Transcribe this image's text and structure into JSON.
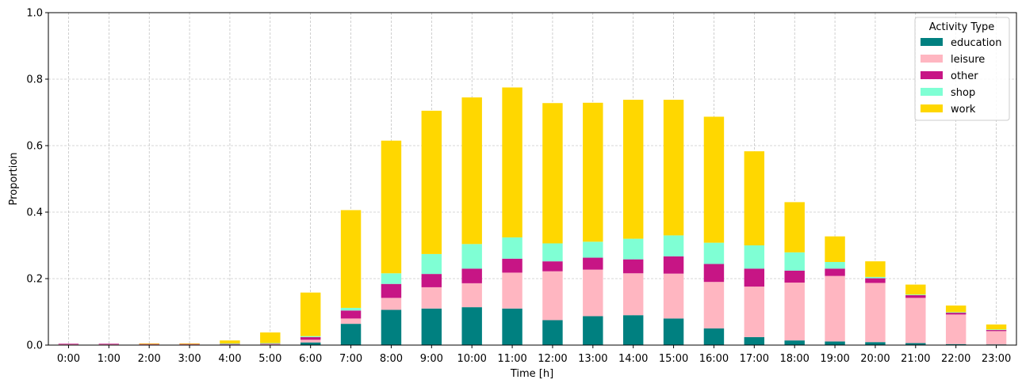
{
  "chart_data": {
    "type": "bar",
    "stacked": true,
    "title": "",
    "xlabel": "Time [h]",
    "ylabel": "Proportion",
    "ylim": [
      0,
      1.0
    ],
    "yticks": [
      "0.0",
      "0.2",
      "0.4",
      "0.6",
      "0.8",
      "1.0"
    ],
    "grid": true,
    "legend": {
      "title": "Activity Type",
      "placement": "top-right"
    },
    "categories": [
      "0:00",
      "1:00",
      "2:00",
      "3:00",
      "4:00",
      "5:00",
      "6:00",
      "7:00",
      "8:00",
      "9:00",
      "10:00",
      "11:00",
      "12:00",
      "13:00",
      "14:00",
      "15:00",
      "16:00",
      "17:00",
      "18:00",
      "19:00",
      "20:00",
      "21:00",
      "22:00",
      "23:00"
    ],
    "series": [
      {
        "name": "education",
        "color": "#008080",
        "values": [
          0.0,
          0.0,
          0.0,
          0.0,
          0.0,
          0.0,
          0.008,
          0.064,
          0.106,
          0.11,
          0.114,
          0.11,
          0.075,
          0.087,
          0.09,
          0.08,
          0.05,
          0.024,
          0.014,
          0.011,
          0.009,
          0.006,
          0.003,
          0.002
        ]
      },
      {
        "name": "leisure",
        "color": "#ffb6c1",
        "values": [
          0.003,
          0.003,
          0.003,
          0.003,
          0.003,
          0.003,
          0.008,
          0.016,
          0.036,
          0.064,
          0.072,
          0.108,
          0.147,
          0.14,
          0.126,
          0.135,
          0.14,
          0.152,
          0.174,
          0.197,
          0.178,
          0.136,
          0.089,
          0.04
        ]
      },
      {
        "name": "other",
        "color": "#c71585",
        "values": [
          0.001,
          0.001,
          0.001,
          0.001,
          0.001,
          0.002,
          0.008,
          0.024,
          0.042,
          0.04,
          0.044,
          0.042,
          0.03,
          0.036,
          0.042,
          0.052,
          0.054,
          0.054,
          0.036,
          0.022,
          0.014,
          0.008,
          0.006,
          0.004
        ]
      },
      {
        "name": "shop",
        "color": "#7fffd4",
        "values": [
          0.0,
          0.0,
          0.0,
          0.0,
          0.001,
          0.001,
          0.003,
          0.008,
          0.032,
          0.06,
          0.074,
          0.064,
          0.054,
          0.048,
          0.062,
          0.063,
          0.064,
          0.07,
          0.055,
          0.02,
          0.004,
          0.002,
          0.001,
          0.001
        ]
      },
      {
        "name": "work",
        "color": "#ffd700",
        "values": [
          0.0,
          0.0,
          0.001,
          0.001,
          0.009,
          0.032,
          0.131,
          0.294,
          0.399,
          0.431,
          0.441,
          0.451,
          0.422,
          0.418,
          0.418,
          0.408,
          0.379,
          0.283,
          0.151,
          0.077,
          0.047,
          0.03,
          0.02,
          0.015
        ]
      }
    ]
  }
}
